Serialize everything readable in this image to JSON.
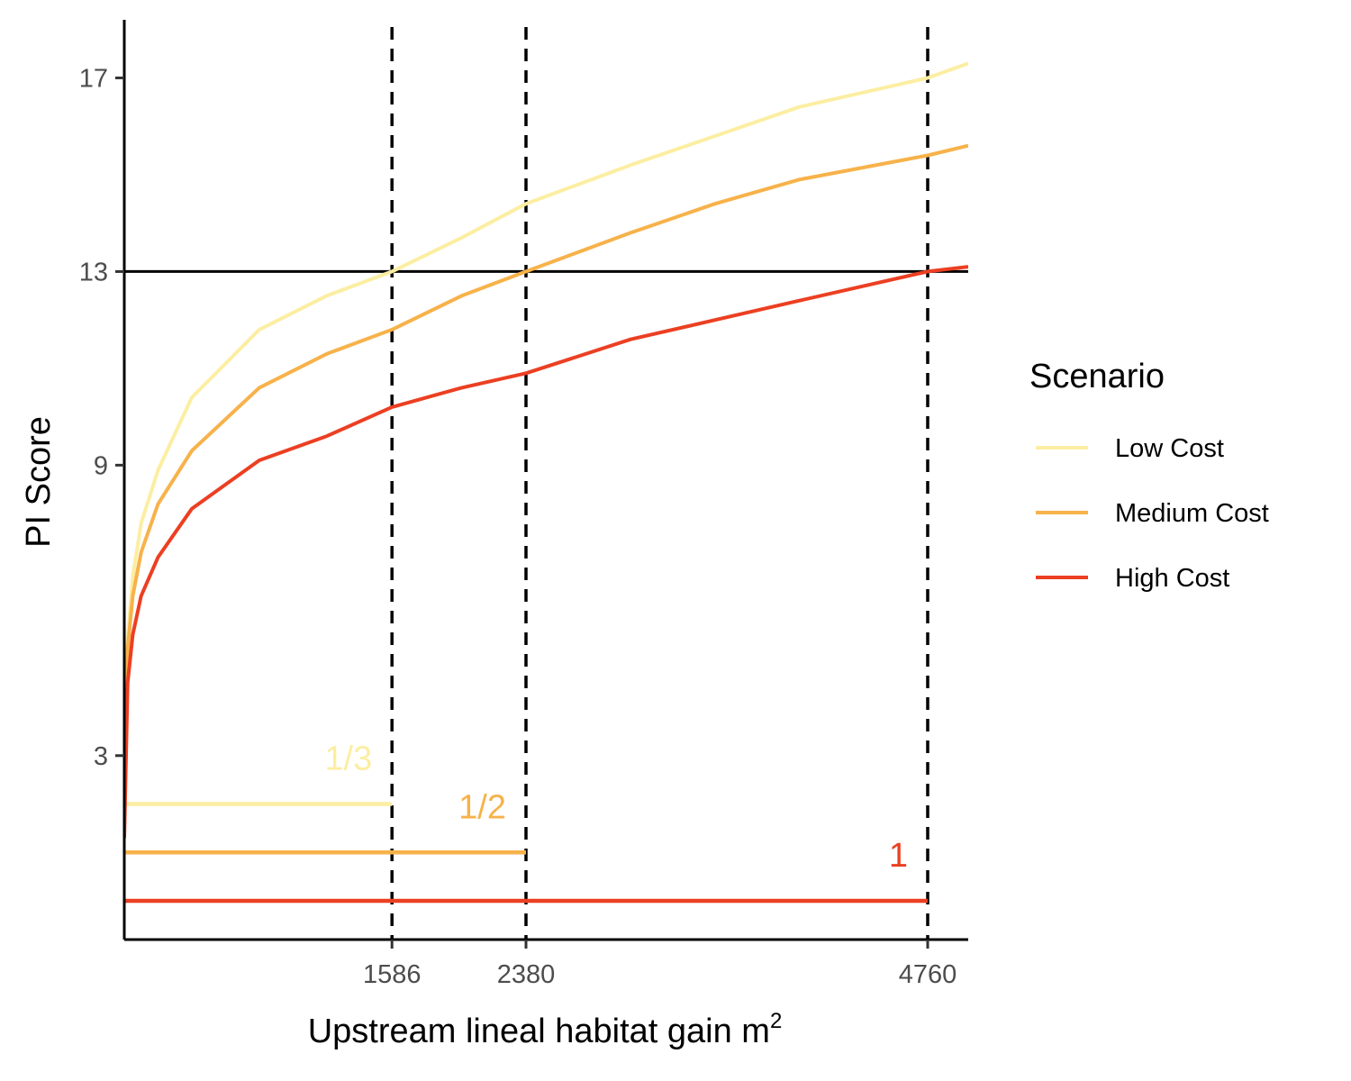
{
  "chart_data": {
    "type": "line",
    "xlabel": "Upstream lineal habitat gain m",
    "xlabel_superscript": "2",
    "ylabel": "PI Score",
    "x_ticks": [
      1586,
      2380,
      4760
    ],
    "y_ticks": [
      3,
      9,
      13,
      17
    ],
    "xlim": [
      0,
      4760
    ],
    "ylim": [
      -0.8,
      18.2
    ],
    "grid": false,
    "threshold": 13,
    "vlines": [
      1586,
      2380,
      4760
    ],
    "legend": {
      "title": "Scenario",
      "position": "right"
    },
    "series": [
      {
        "name": "Low Cost",
        "color": "#FCEEA2",
        "x": [
          0,
          20,
          50,
          100,
          200,
          400,
          800,
          1200,
          1586,
          2000,
          2380,
          3000,
          3500,
          4000,
          4760,
          5000
        ],
        "y": [
          1.9,
          5.4,
          6.7,
          7.8,
          8.9,
          10.4,
          11.8,
          12.5,
          13.0,
          13.7,
          14.4,
          15.2,
          15.8,
          16.4,
          17.0,
          17.3
        ]
      },
      {
        "name": "Medium Cost",
        "color": "#F7B24A",
        "x": [
          0,
          20,
          50,
          100,
          200,
          400,
          800,
          1200,
          1586,
          2000,
          2380,
          3000,
          3500,
          4000,
          4760,
          5000
        ],
        "y": [
          1.5,
          5.2,
          6.3,
          7.2,
          8.2,
          9.3,
          10.6,
          11.3,
          11.8,
          12.5,
          13.0,
          13.8,
          14.4,
          14.9,
          15.4,
          15.6
        ]
      },
      {
        "name": "High Cost",
        "color": "#EC3F22",
        "x": [
          0,
          20,
          50,
          100,
          200,
          400,
          800,
          1200,
          1586,
          2000,
          2380,
          3000,
          3500,
          4000,
          4760,
          5000
        ],
        "y": [
          1.3,
          4.5,
          5.5,
          6.3,
          7.1,
          8.1,
          9.1,
          9.6,
          10.2,
          10.6,
          10.9,
          11.6,
          12.0,
          12.4,
          13.0,
          13.1
        ]
      }
    ],
    "segments": [
      {
        "label": "1/3",
        "color": "#FCEEA2",
        "y": 2.0,
        "x_end": 1586
      },
      {
        "label": "1/2",
        "color": "#F7B24A",
        "y": 1.0,
        "x_end": 2380
      },
      {
        "label": "1",
        "color": "#EC3F22",
        "y": 0.0,
        "x_end": 4760
      }
    ]
  }
}
